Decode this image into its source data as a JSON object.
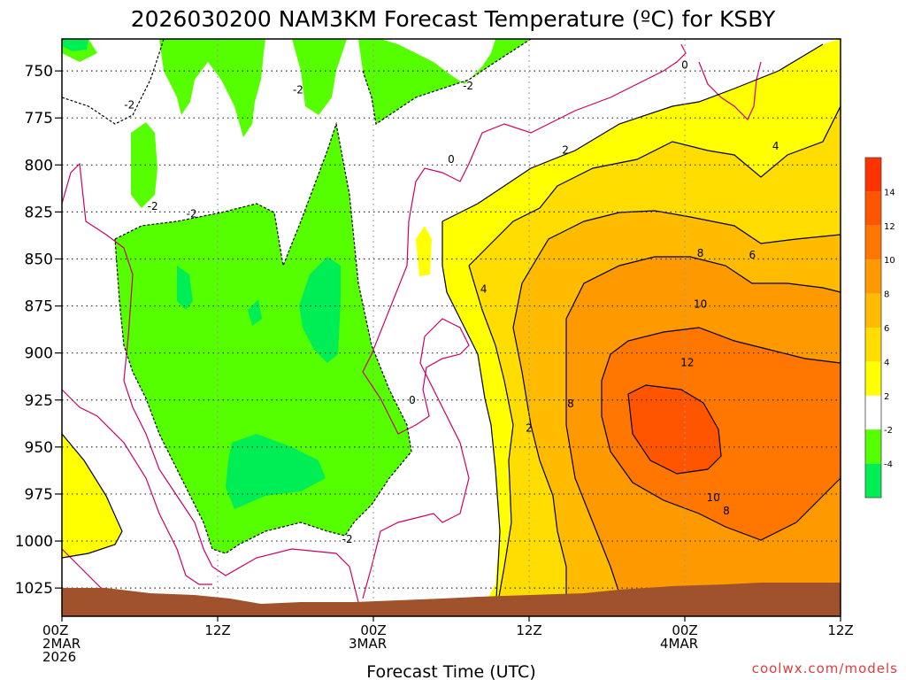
{
  "title": "2026030200 NAM3KM Forecast Temperature (ºC) for KSBY",
  "credit": "coolwx.com/models",
  "chart_data": {
    "type": "contour",
    "title": "2026030200 NAM3KM Forecast Temperature (ºC) for KSBY",
    "xlabel": "Forecast Time (UTC)",
    "ylabel": "",
    "x_range_hours": [
      0,
      60
    ],
    "x_ticks": [
      {
        "hour": 0,
        "lines": [
          "00Z",
          "2MAR",
          "2026"
        ]
      },
      {
        "hour": 12,
        "lines": [
          "12Z"
        ]
      },
      {
        "hour": 24,
        "lines": [
          "00Z",
          "3MAR"
        ]
      },
      {
        "hour": 36,
        "lines": [
          "12Z"
        ]
      },
      {
        "hour": 48,
        "lines": [
          "00Z",
          "4MAR"
        ]
      },
      {
        "hour": 60,
        "lines": [
          "12Z"
        ]
      }
    ],
    "y_axis": "pressure (hPa), reversed",
    "y_range": [
      1040,
      733
    ],
    "y_ticks": [
      750,
      775,
      800,
      825,
      850,
      875,
      900,
      925,
      950,
      975,
      1000,
      1025
    ],
    "grid": true,
    "colorbar": {
      "placement": "right",
      "levels": [
        -6,
        -4,
        -2,
        2,
        4,
        6,
        8,
        10,
        12,
        14,
        16
      ],
      "labels": [
        "-4",
        "-2",
        "2",
        "4",
        "6",
        "8",
        "10",
        "12",
        "14"
      ],
      "colors": [
        "#00ee55",
        "#55ff00",
        "#ffffff",
        "#ffff00",
        "#ffdd00",
        "#ffbb00",
        "#ff9900",
        "#ff7700",
        "#ff5500",
        "#ff3300"
      ]
    },
    "contour_labels": [
      {
        "text": "0",
        "hour": 48.0,
        "p": 747
      },
      {
        "text": "0",
        "hour": 30.0,
        "p": 797
      },
      {
        "text": "0",
        "hour": 27.0,
        "p": 925
      },
      {
        "text": "-2",
        "hour": 5.2,
        "p": 768
      },
      {
        "text": "-2",
        "hour": 18.2,
        "p": 760
      },
      {
        "text": "-2",
        "hour": 31.3,
        "p": 758
      },
      {
        "text": "-2",
        "hour": 7.0,
        "p": 822
      },
      {
        "text": "-2",
        "hour": 10.0,
        "p": 826
      },
      {
        "text": "-2",
        "hour": 22.0,
        "p": 999
      },
      {
        "text": "2",
        "hour": 38.8,
        "p": 792
      },
      {
        "text": "2",
        "hour": 36.0,
        "p": 940
      },
      {
        "text": "4",
        "hour": 55.0,
        "p": 790
      },
      {
        "text": "4",
        "hour": 32.5,
        "p": 866
      },
      {
        "text": "6",
        "hour": 53.2,
        "p": 848
      },
      {
        "text": "8",
        "hour": 49.2,
        "p": 847
      },
      {
        "text": "8",
        "hour": 39.2,
        "p": 927
      },
      {
        "text": "8",
        "hour": 51.2,
        "p": 984
      },
      {
        "text": "10",
        "hour": 49.2,
        "p": 874
      },
      {
        "text": "10",
        "hour": 50.2,
        "p": 977
      },
      {
        "text": "12",
        "hour": 48.2,
        "p": 905
      }
    ]
  }
}
